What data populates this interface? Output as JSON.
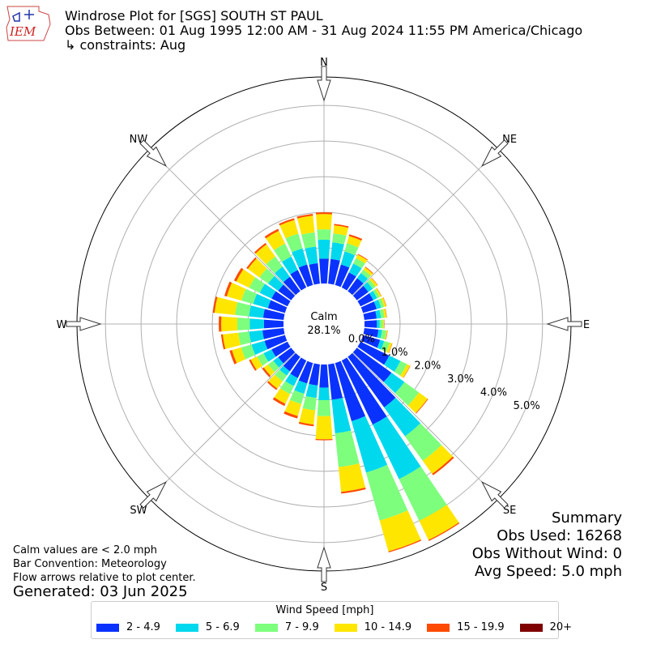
{
  "logo": {
    "text": "IEM"
  },
  "header": {
    "line1": "Windrose Plot for [SGS] SOUTH ST PAUL",
    "line2": "Obs Between: 01 Aug 1995 12:00 AM - 31 Aug 2024 11:55 PM America/Chicago",
    "line3": "↳ constraints: Aug"
  },
  "footer": {
    "calm_note": "Calm values are < 2.0 mph",
    "bar_convention": "Bar Convention: Meteorology",
    "flow_arrows": "Flow arrows relative to plot center.",
    "generated": "Generated: 03 Jun 2025"
  },
  "summary": {
    "heading": "Summary",
    "obs_used": "Obs Used: 16268",
    "obs_without_wind": "Obs Without Wind: 0",
    "avg_speed": "Avg Speed: 5.0 mph"
  },
  "chart_data": {
    "type": "windrose",
    "calm_label": "Calm",
    "calm_value": "28.1%",
    "radial_tick_labels": [
      "0.0%",
      "1.0%",
      "2.0%",
      "3.0%",
      "4.0%",
      "5.0%"
    ],
    "radial_ticks": [
      0,
      1,
      2,
      3,
      4,
      5
    ],
    "rmax_percent": 5.8,
    "compass_labels": [
      {
        "label": "N",
        "deg": 0
      },
      {
        "label": "NE",
        "deg": 45
      },
      {
        "label": "E",
        "deg": 90
      },
      {
        "label": "SE",
        "deg": 135
      },
      {
        "label": "S",
        "deg": 180
      },
      {
        "label": "SW",
        "deg": 225
      },
      {
        "label": "W",
        "deg": 270
      },
      {
        "label": "NW",
        "deg": 315
      }
    ],
    "legend_title": "Wind Speed [mph]",
    "speed_bins": [
      {
        "label": "2 - 4.9",
        "color": "#0a32ff"
      },
      {
        "label": "5 - 6.9",
        "color": "#00d8ee"
      },
      {
        "label": "7 - 9.9",
        "color": "#7dff7d"
      },
      {
        "label": "10 - 14.9",
        "color": "#ffe600"
      },
      {
        "label": "15 - 19.9",
        "color": "#ff4a00"
      },
      {
        "label": "20+",
        "color": "#7f0000"
      }
    ],
    "directions_deg": [
      0,
      10,
      20,
      30,
      40,
      50,
      60,
      70,
      80,
      90,
      100,
      110,
      120,
      130,
      140,
      150,
      160,
      170,
      180,
      190,
      200,
      210,
      220,
      230,
      240,
      250,
      260,
      270,
      280,
      290,
      300,
      310,
      320,
      330,
      340,
      350
    ],
    "cumulative_percent": [
      [
        0.7,
        1.23,
        1.52,
        1.95,
        2.0,
        2.0
      ],
      [
        0.7,
        1.17,
        1.42,
        1.65,
        1.69,
        1.69
      ],
      [
        0.6,
        0.98,
        1.22,
        1.43,
        1.48,
        1.48
      ],
      [
        0.47,
        0.75,
        0.92,
        1.03,
        1.05,
        1.05
      ],
      [
        0.45,
        0.63,
        0.75,
        0.83,
        0.85,
        0.85
      ],
      [
        0.4,
        0.55,
        0.65,
        0.72,
        0.73,
        0.73
      ],
      [
        0.4,
        0.52,
        0.6,
        0.65,
        0.66,
        0.66
      ],
      [
        0.4,
        0.53,
        0.62,
        0.68,
        0.69,
        0.69
      ],
      [
        0.35,
        0.47,
        0.57,
        0.63,
        0.64,
        0.64
      ],
      [
        0.35,
        0.43,
        0.52,
        0.55,
        0.56,
        0.56
      ],
      [
        0.4,
        0.5,
        0.62,
        0.65,
        0.66,
        0.66
      ],
      [
        0.5,
        0.62,
        0.78,
        0.85,
        0.86,
        0.86
      ],
      [
        0.9,
        1.25,
        1.45,
        1.55,
        1.56,
        1.56
      ],
      [
        1.2,
        1.65,
        2.15,
        2.45,
        2.47,
        2.47
      ],
      [
        1.75,
        2.75,
        3.6,
        4.05,
        4.1,
        4.1
      ],
      [
        2.0,
        3.7,
        5.0,
        5.6,
        5.63,
        5.63
      ],
      [
        1.7,
        3.2,
        4.6,
        5.5,
        5.53,
        5.53
      ],
      [
        1.0,
        1.95,
        2.9,
        3.6,
        3.65,
        3.65
      ],
      [
        0.65,
        1.0,
        1.45,
        2.1,
        2.13,
        2.13
      ],
      [
        0.6,
        0.95,
        1.3,
        1.7,
        1.75,
        1.75
      ],
      [
        0.6,
        0.9,
        1.2,
        1.55,
        1.62,
        1.62
      ],
      [
        0.55,
        0.8,
        1.05,
        1.35,
        1.42,
        1.42
      ],
      [
        0.5,
        0.65,
        0.85,
        1.1,
        1.15,
        1.15
      ],
      [
        0.45,
        0.62,
        0.8,
        0.95,
        1.0,
        1.0
      ],
      [
        0.5,
        0.75,
        0.95,
        1.15,
        1.2,
        1.2
      ],
      [
        0.6,
        0.98,
        1.28,
        1.55,
        1.62,
        1.62
      ],
      [
        0.6,
        0.98,
        1.28,
        1.72,
        1.77,
        1.77
      ],
      [
        0.55,
        0.95,
        1.3,
        1.75,
        1.82,
        1.82
      ],
      [
        0.58,
        0.98,
        1.37,
        1.95,
        2.0,
        2.0
      ],
      [
        0.5,
        0.93,
        1.27,
        1.7,
        1.77,
        1.77
      ],
      [
        0.5,
        0.87,
        1.2,
        1.6,
        1.67,
        1.67
      ],
      [
        0.45,
        0.8,
        1.1,
        1.5,
        1.55,
        1.55
      ],
      [
        0.5,
        0.85,
        1.2,
        1.62,
        1.67,
        1.67
      ],
      [
        0.55,
        0.97,
        1.37,
        1.77,
        1.83,
        1.83
      ],
      [
        0.6,
        1.07,
        1.5,
        1.9,
        1.95,
        1.95
      ],
      [
        0.58,
        1.05,
        1.45,
        1.92,
        1.97,
        1.97
      ]
    ]
  }
}
